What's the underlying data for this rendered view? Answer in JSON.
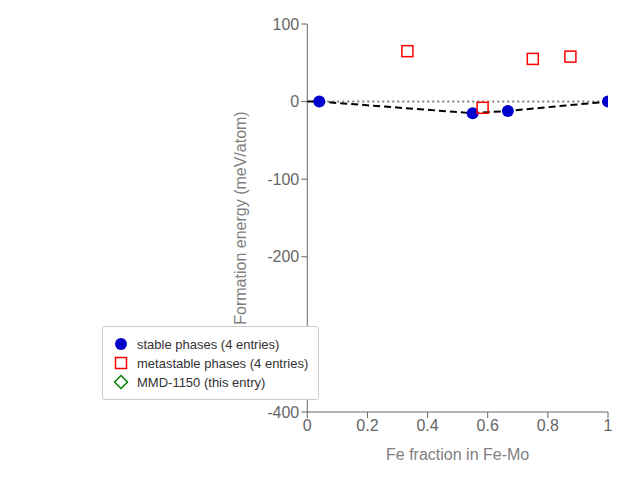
{
  "chart_data": {
    "type": "scatter",
    "xlabel": "Fe fraction in Fe-Mo",
    "ylabel": "Formation energy (meV/atom)",
    "xlim": [
      0,
      1.0
    ],
    "ylim": [
      -400,
      100
    ],
    "xticks": [
      0,
      0.2,
      0.4,
      0.6,
      0.8,
      1
    ],
    "yticks": [
      -400,
      -300,
      -200,
      -100,
      0,
      100
    ],
    "grid": false,
    "legend": "lower left",
    "series": [
      {
        "type": "line",
        "line_style": "dotted",
        "color": "gray",
        "x": [
          0.0,
          1.0
        ],
        "values": [
          0,
          0
        ]
      },
      {
        "type": "line",
        "line_style": "dashed",
        "color": "black",
        "x": [
          0.0,
          0.04,
          0.55,
          0.667,
          1.0
        ],
        "values": [
          0,
          0,
          -15,
          -12,
          0
        ]
      },
      {
        "type": "scatter",
        "name": "stable phases (4 entries)",
        "marker": "circle",
        "color": "#0000cc",
        "x": [
          0.04,
          0.55,
          0.667,
          1.0
        ],
        "values": [
          0,
          -15,
          -12,
          0
        ]
      },
      {
        "type": "scatter",
        "name": "metastable phases (4 entries)",
        "marker": "square",
        "color": "red",
        "x": [
          0.333,
          0.583,
          0.75,
          0.875
        ],
        "values": [
          65,
          -8,
          55,
          58
        ]
      },
      {
        "type": "scatter",
        "name": "MMD-1150 (this entry)",
        "marker": "diamond",
        "color": "green",
        "x": [],
        "values": []
      }
    ]
  }
}
